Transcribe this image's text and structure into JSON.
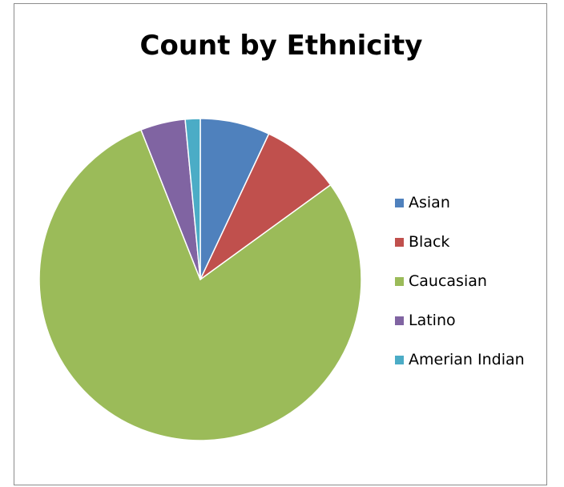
{
  "chart_data": {
    "type": "pie",
    "title": "Count by Ethnicity",
    "categories": [
      "Asian",
      "Black",
      "Caucasian",
      "Latino",
      "Amerian Indian"
    ],
    "values": [
      7,
      8,
      79,
      4.5,
      1.5
    ],
    "colors": [
      "#4f81bd",
      "#c0504d",
      "#9bbb59",
      "#8064a2",
      "#4bacc6"
    ],
    "legend_position": "right"
  }
}
